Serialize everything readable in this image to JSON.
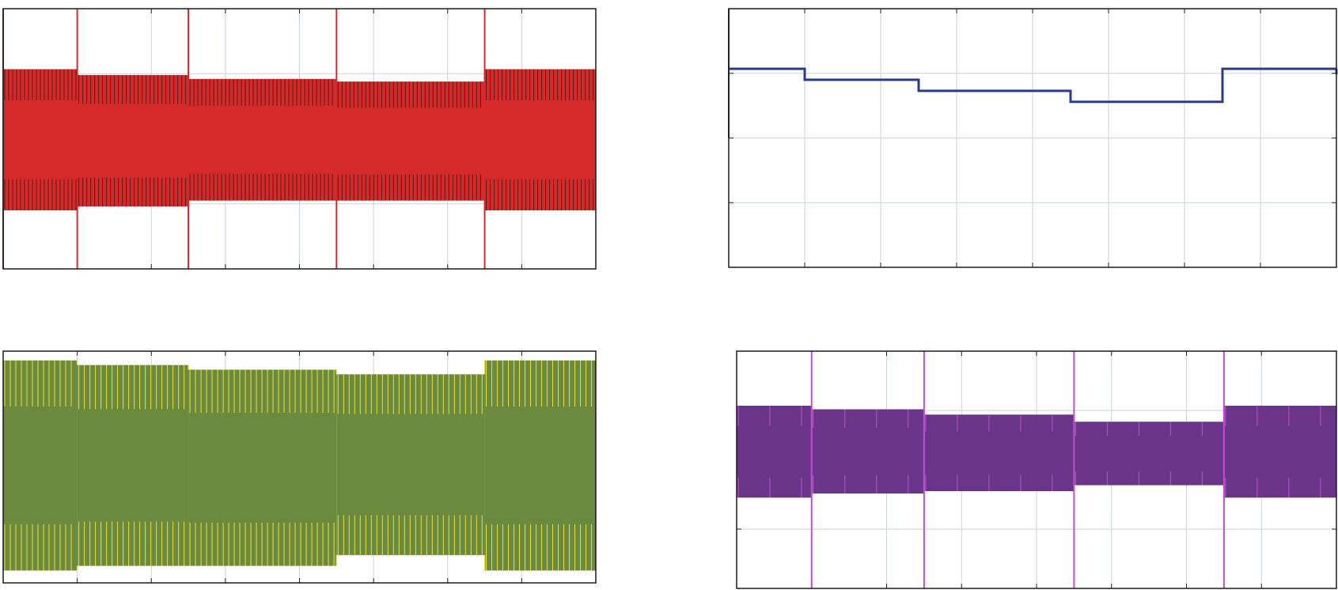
{
  "chart_data": [
    {
      "type": "line",
      "title": "",
      "xlabel": "",
      "ylabel": "",
      "xlim": [
        0,
        8
      ],
      "ylim": [
        0,
        4
      ],
      "grid": true,
      "color": "#d42a2a",
      "edge_color": "#5a1a1a",
      "series": [
        {
          "values": [
            {
              "x0": 0.0,
              "x1": 1.0,
              "upper": 3.07,
              "lower": 0.9
            },
            {
              "x0": 1.0,
              "x1": 2.5,
              "upper": 2.98,
              "lower": 0.96
            },
            {
              "x0": 2.5,
              "x1": 4.5,
              "upper": 2.92,
              "lower": 1.05
            },
            {
              "x0": 4.5,
              "x1": 6.5,
              "upper": 2.88,
              "lower": 1.05
            },
            {
              "x0": 6.5,
              "x1": 8.0,
              "upper": 3.07,
              "lower": 0.9
            }
          ],
          "transients": [
            0.0,
            1.0,
            2.5,
            4.5,
            6.5
          ]
        }
      ]
    },
    {
      "type": "line",
      "title": "",
      "xlabel": "",
      "ylabel": "",
      "xlim": [
        0,
        8
      ],
      "ylim": [
        0,
        4
      ],
      "grid": true,
      "color": "#2b3a8f",
      "series": [
        {
          "x": [
            0.0,
            1.0,
            1.0,
            2.5,
            2.5,
            4.5,
            4.5,
            6.5,
            6.5,
            8.0
          ],
          "y": [
            3.07,
            3.07,
            2.9,
            2.9,
            2.73,
            2.73,
            2.56,
            2.56,
            3.07,
            3.07
          ]
        }
      ]
    },
    {
      "type": "line",
      "title": "",
      "xlabel": "",
      "ylabel": "",
      "xlim": [
        0,
        8
      ],
      "ylim": [
        0,
        3
      ],
      "grid": true,
      "color": "#6b8a3e",
      "edge_color": "#e8e03a",
      "series": [
        {
          "values": [
            {
              "x0": 0.0,
              "x1": 1.0,
              "upper": 2.88,
              "lower": 0.16
            },
            {
              "x0": 1.0,
              "x1": 2.5,
              "upper": 2.82,
              "lower": 0.22
            },
            {
              "x0": 2.5,
              "x1": 4.5,
              "upper": 2.76,
              "lower": 0.22
            },
            {
              "x0": 4.5,
              "x1": 6.5,
              "upper": 2.7,
              "lower": 0.36
            },
            {
              "x0": 6.5,
              "x1": 8.0,
              "upper": 2.88,
              "lower": 0.16
            }
          ]
        }
      ]
    },
    {
      "type": "line",
      "title": "",
      "xlabel": "",
      "ylabel": "",
      "xlim": [
        0,
        8
      ],
      "ylim": [
        0,
        4
      ],
      "grid": true,
      "color": "#6a3489",
      "edge_color": "#c04fd0",
      "series": [
        {
          "values": [
            {
              "x0": 0.0,
              "x1": 1.0,
              "upper": 3.08,
              "lower": 1.53
            },
            {
              "x0": 1.0,
              "x1": 2.5,
              "upper": 3.02,
              "lower": 1.6
            },
            {
              "x0": 2.5,
              "x1": 4.5,
              "upper": 2.93,
              "lower": 1.64
            },
            {
              "x0": 4.5,
              "x1": 6.5,
              "upper": 2.81,
              "lower": 1.74
            },
            {
              "x0": 6.5,
              "x1": 8.0,
              "upper": 3.08,
              "lower": 1.53
            }
          ],
          "transients": [
            1.0,
            2.5,
            4.5,
            6.5
          ]
        }
      ]
    }
  ]
}
